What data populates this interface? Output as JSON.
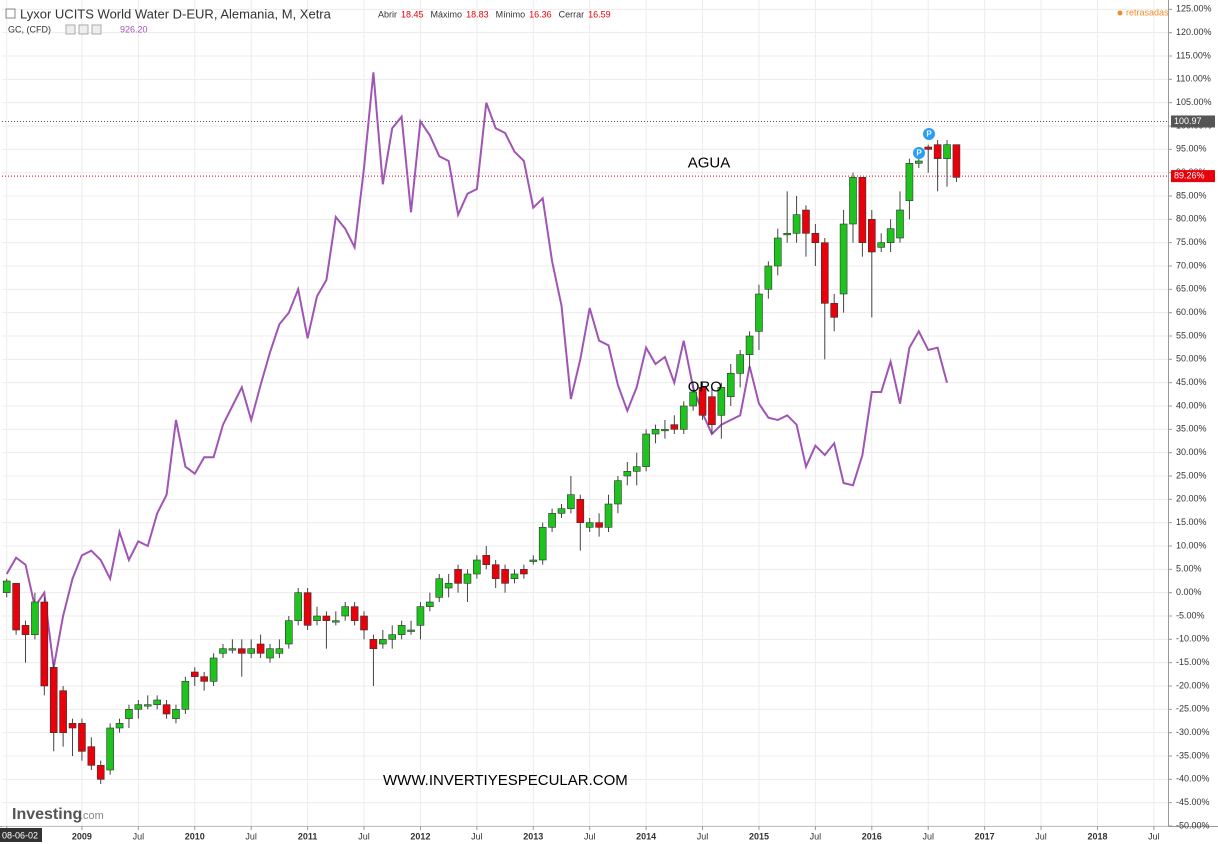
{
  "chart_data": {
    "type": "candlestick",
    "title": "Lyxor UCITS World Water D-EUR, Alemania, M, Xetra",
    "ohlc_legend": [
      {
        "name": "Abrir",
        "value": "18.45"
      },
      {
        "name": "Máximo",
        "value": "18.83"
      },
      {
        "name": "Mínimo",
        "value": "16.36"
      },
      {
        "name": "Cerrar",
        "value": "16.59"
      }
    ],
    "compare_symbol": "GC, (CFD)",
    "compare_value": "926.20",
    "delay_note": "retrasadas",
    "logo": "Investing",
    "logo_suffix": ".com",
    "watermark": "WWW.INVERTIYESPECULAR.COM",
    "annotations": [
      {
        "text": "AGUA",
        "x": 72,
        "y": 92
      },
      {
        "text": "ORO",
        "x": 72,
        "y": 44
      }
    ],
    "ylim": [
      -50,
      127
    ],
    "yticks": [
      {
        "value": -50,
        "label": "-50.00%"
      },
      {
        "value": -45,
        "label": "-45.00%"
      },
      {
        "value": -40,
        "label": "-40.00%"
      },
      {
        "value": -35,
        "label": "-35.00%"
      },
      {
        "value": -30,
        "label": "-30.00%"
      },
      {
        "value": -25,
        "label": "-25.00%"
      },
      {
        "value": -20,
        "label": "-20.00%"
      },
      {
        "value": -15,
        "label": "-15.00%"
      },
      {
        "value": -10,
        "label": "-10.00%"
      },
      {
        "value": -5,
        "label": "-5.00%"
      },
      {
        "value": 0,
        "label": "0.00%"
      },
      {
        "value": 5,
        "label": "5.00%"
      },
      {
        "value": 10,
        "label": "10.00%"
      },
      {
        "value": 15,
        "label": "15.00%"
      },
      {
        "value": 20,
        "label": "20.00%"
      },
      {
        "value": 25,
        "label": "25.00%"
      },
      {
        "value": 30,
        "label": "30.00%"
      },
      {
        "value": 35,
        "label": "35.00%"
      },
      {
        "value": 40,
        "label": "40.00%"
      },
      {
        "value": 45,
        "label": "45.00%"
      },
      {
        "value": 50,
        "label": "50.00%"
      },
      {
        "value": 55,
        "label": "55.00%"
      },
      {
        "value": 60,
        "label": "60.00%"
      },
      {
        "value": 65,
        "label": "65.00%"
      },
      {
        "value": 70,
        "label": "70.00%"
      },
      {
        "value": 75,
        "label": "75.00%"
      },
      {
        "value": 80,
        "label": "80.00%"
      },
      {
        "value": 85,
        "label": "85.00%"
      },
      {
        "value": 90,
        "label": "90.00%"
      },
      {
        "value": 95,
        "label": "95.00%"
      },
      {
        "value": 100,
        "label": "100.00%"
      },
      {
        "value": 105,
        "label": "105.00%"
      },
      {
        "value": 110,
        "label": "110.00%"
      },
      {
        "value": 115,
        "label": "115.00%"
      },
      {
        "value": 120,
        "label": "120.00%"
      },
      {
        "value": 125,
        "label": "125.00%"
      }
    ],
    "xlim": [
      -0.5,
      123.5
    ],
    "xticks": [
      {
        "value": 0,
        "label": "08-06-02"
      },
      {
        "value": 8,
        "label": "2009"
      },
      {
        "value": 14,
        "label": "Jul"
      },
      {
        "value": 20,
        "label": "2010"
      },
      {
        "value": 26,
        "label": "Jul"
      },
      {
        "value": 32,
        "label": "2011"
      },
      {
        "value": 38,
        "label": "Jul"
      },
      {
        "value": 44,
        "label": "2012"
      },
      {
        "value": 50,
        "label": "Jul"
      },
      {
        "value": 56,
        "label": "2013"
      },
      {
        "value": 62,
        "label": "Jul"
      },
      {
        "value": 68,
        "label": "2014"
      },
      {
        "value": 74,
        "label": "Jul"
      },
      {
        "value": 80,
        "label": "2015"
      },
      {
        "value": 86,
        "label": "Jul"
      },
      {
        "value": 92,
        "label": "2016"
      },
      {
        "value": 98,
        "label": "Jul"
      },
      {
        "value": 104,
        "label": "2017"
      },
      {
        "value": 110,
        "label": "Jul"
      },
      {
        "value": 116,
        "label": "2018"
      },
      {
        "value": 122,
        "label": "Jul"
      }
    ],
    "grid": true,
    "up_color": "#1ec31e",
    "down_color": "#e8000b",
    "wick_color": "#444444",
    "open": [
      0,
      2,
      -7,
      -9,
      -2,
      -16,
      -21,
      -28,
      -28,
      -33,
      -37,
      -38,
      -29,
      -27,
      -25,
      -24,
      -24,
      -24,
      -27,
      -25,
      -17,
      -18,
      -19,
      -13,
      -12,
      -12,
      -13,
      -11,
      -14,
      -13,
      -11,
      -6,
      0,
      -6,
      -5,
      -6,
      -5,
      -3,
      -5,
      -10,
      -11,
      -10,
      -9,
      -8,
      -7,
      -3,
      -1,
      1,
      5,
      2,
      4,
      8,
      6,
      5,
      3,
      5,
      7,
      7,
      14,
      17,
      18,
      20,
      14,
      15,
      14,
      19,
      25,
      26,
      27,
      34,
      35,
      36,
      35,
      40,
      44,
      42,
      38,
      42,
      47,
      51,
      56,
      65,
      70,
      77,
      77,
      82,
      77,
      75,
      62,
      64,
      79,
      89,
      80,
      74,
      75,
      76,
      84,
      92,
      95.5,
      96,
      93,
      96
    ],
    "high": [
      3,
      2,
      -6,
      0,
      -1,
      -15,
      -20,
      -27,
      -27,
      -31,
      -36,
      -28,
      -27,
      -24,
      -23,
      -22,
      -22,
      -23,
      -24,
      -18,
      -16,
      -17,
      -13,
      -11,
      -10,
      -10,
      -10,
      -9,
      -11,
      -10,
      -5,
      1,
      1,
      -3,
      -4,
      -4,
      -2,
      -2,
      -4,
      -9,
      -8,
      -7,
      -6,
      -6,
      -2,
      0,
      4,
      4,
      6,
      5,
      8,
      10,
      7,
      6,
      5,
      6,
      8,
      15,
      18,
      19,
      25,
      21,
      16,
      17,
      21,
      25,
      28,
      30,
      35,
      36,
      37,
      38,
      41,
      45,
      45,
      44,
      45,
      49,
      52,
      56,
      66,
      71,
      78,
      86,
      85,
      83,
      79,
      76,
      64,
      82,
      90,
      89,
      82,
      77,
      80,
      86,
      93,
      93,
      96,
      97,
      97,
      96
    ],
    "low": [
      -1,
      -9,
      -15,
      -10,
      -22,
      -34,
      -33,
      -35,
      -36,
      -38,
      -41,
      -39,
      -30,
      -29,
      -27,
      -25,
      -25,
      -27,
      -28,
      -26,
      -20,
      -21,
      -20,
      -14,
      -13,
      -18,
      -14,
      -14,
      -15,
      -14,
      -12,
      -7,
      -8,
      -7,
      -12,
      -7,
      -6,
      -7,
      -10,
      -20,
      -12,
      -12,
      -10,
      -9,
      -10,
      -4,
      -2,
      -1,
      0,
      -2,
      3,
      5,
      1,
      0,
      2,
      3,
      6,
      6,
      13,
      16,
      17,
      9,
      13,
      12,
      13,
      17,
      23,
      23,
      26,
      32,
      33,
      34,
      34,
      39,
      37,
      34,
      33,
      40,
      44,
      48,
      52,
      63,
      68,
      75,
      75,
      72,
      70,
      50,
      56,
      60,
      75,
      72,
      59,
      73,
      73,
      75,
      80,
      91,
      90,
      86,
      87,
      88
    ],
    "close": [
      2.5,
      -8,
      -9,
      -2,
      -20,
      -30,
      -30,
      -29,
      -34,
      -37,
      -40,
      -29,
      -28,
      -25,
      -24,
      -24,
      -23,
      -26,
      -25,
      -19,
      -18,
      -19,
      -14,
      -12,
      -12,
      -13,
      -12,
      -13,
      -12,
      -12,
      -6,
      0,
      -7,
      -5,
      -6,
      -6,
      -3,
      -6,
      -8,
      -12,
      -10,
      -9,
      -7,
      -8,
      -3,
      -2,
      3,
      2,
      2,
      4,
      7,
      6,
      3,
      2,
      4,
      4,
      7,
      14,
      17,
      18,
      21,
      15,
      15,
      14,
      19,
      24,
      26,
      27,
      34,
      35,
      35,
      35,
      40,
      43,
      38,
      36,
      44,
      47,
      51,
      55,
      64,
      70,
      76,
      77,
      81,
      77,
      75,
      62,
      59,
      79,
      89,
      75,
      73,
      75,
      78,
      82,
      92,
      92.5,
      95,
      93,
      96,
      89
    ],
    "series": [
      {
        "name": "GC, (CFD)",
        "color": "#a055b4",
        "values": [
          4,
          7.5,
          6,
          -3,
          0,
          -16,
          -5,
          3,
          8,
          9,
          7,
          3,
          13,
          7,
          11,
          10,
          17,
          21,
          37,
          27,
          25.5,
          29,
          29,
          36,
          40,
          44,
          37,
          44.5,
          51.5,
          57.5,
          60,
          65,
          54.5,
          63.5,
          67,
          80.5,
          78,
          74,
          91,
          111.5,
          87.5,
          99.5,
          102,
          81.5,
          101,
          98,
          93.5,
          92.5,
          81,
          85.5,
          86.5,
          105,
          99.5,
          98.5,
          94.5,
          92.5,
          82.5,
          84.5,
          71,
          61.5,
          41.5,
          50,
          61,
          54,
          53,
          44.5,
          39,
          44,
          52.5,
          49,
          50.5,
          45,
          54,
          44,
          38.5,
          34,
          36,
          37,
          38,
          48.5,
          40.5,
          37.5,
          37,
          38,
          36,
          27,
          31.5,
          29.5,
          32,
          23.5,
          23,
          29.5,
          43,
          43,
          49.5,
          40.5,
          52.5,
          56,
          52,
          52.5,
          45,
          null
        ]
      }
    ],
    "price_lines": [
      {
        "value": 100.97,
        "label": "100.97",
        "color": "#555555"
      },
      {
        "value": 89.26,
        "label": "89.26%",
        "color": "#e8000b"
      }
    ]
  }
}
